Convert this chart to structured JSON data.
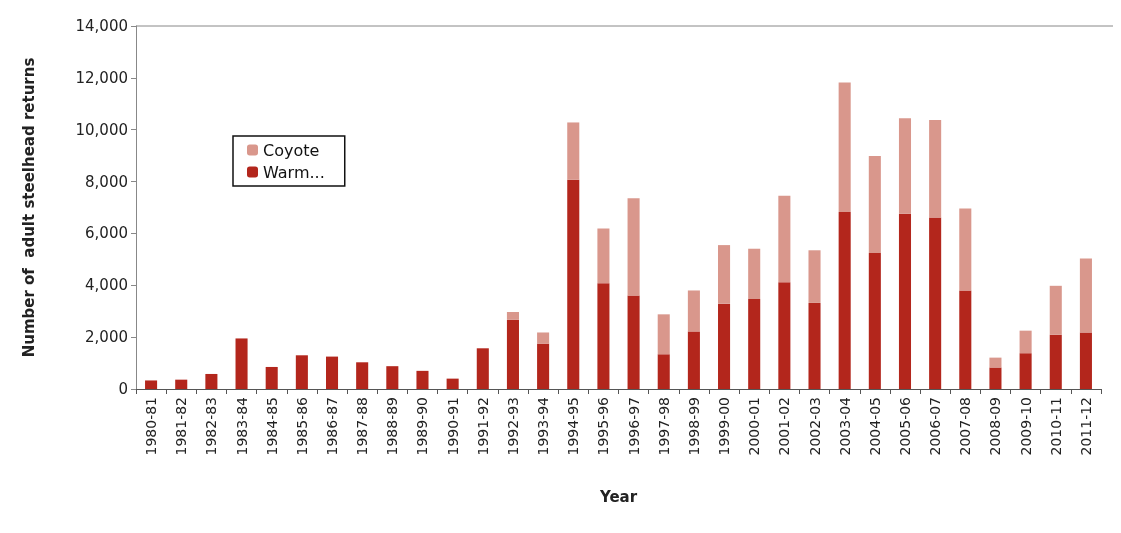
{
  "chart_data": {
    "type": "bar",
    "stacked": true,
    "xlabel": "Year",
    "ylabel": "Number of  adult steelhead returns",
    "categories": [
      "1980-81",
      "1981-82",
      "1982-83",
      "1983-84",
      "1984-85",
      "1985-86",
      "1986-87",
      "1987-88",
      "1988-89",
      "1989-90",
      "1990-91",
      "1991-92",
      "1992-93",
      "1993-94",
      "1994-95",
      "1995-96",
      "1996-97",
      "1997-98",
      "1998-99",
      "1999-00",
      "2000-01",
      "2001-02",
      "2002-03",
      "2003-04",
      "2004-05",
      "2005-06",
      "2006-07",
      "2007-08",
      "2008-09",
      "2009-10",
      "2010-11",
      "2011-12"
    ],
    "series": [
      {
        "name": "Warm...",
        "color": "#b3261c",
        "values": [
          330,
          360,
          580,
          1950,
          850,
          1300,
          1250,
          1030,
          880,
          700,
          400,
          1570,
          2670,
          1750,
          8070,
          4080,
          3610,
          1340,
          2220,
          3290,
          3470,
          4120,
          3320,
          6830,
          5250,
          6760,
          6610,
          3800,
          830,
          1380,
          2090,
          2180
        ]
      },
      {
        "name": "Coyote",
        "color": "#d9978c",
        "values": [
          0,
          0,
          0,
          0,
          0,
          0,
          0,
          0,
          0,
          0,
          0,
          0,
          300,
          430,
          2210,
          2110,
          3750,
          1540,
          1580,
          2260,
          1940,
          3330,
          2030,
          4990,
          3740,
          3680,
          3760,
          3160,
          380,
          870,
          1890,
          2850
        ]
      }
    ],
    "ylim": [
      0,
      14000
    ],
    "yticks": [
      {
        "value": 0,
        "label": "0"
      },
      {
        "value": 2000,
        "label": "2,000"
      },
      {
        "value": 4000,
        "label": "4,000"
      },
      {
        "value": 6000,
        "label": "6,000"
      },
      {
        "value": 8000,
        "label": "8,000"
      },
      {
        "value": 10000,
        "label": "10,000"
      },
      {
        "value": 12000,
        "label": "12,000"
      },
      {
        "value": 14000,
        "label": "14,000"
      }
    ],
    "grid": false,
    "legend": "top left"
  }
}
